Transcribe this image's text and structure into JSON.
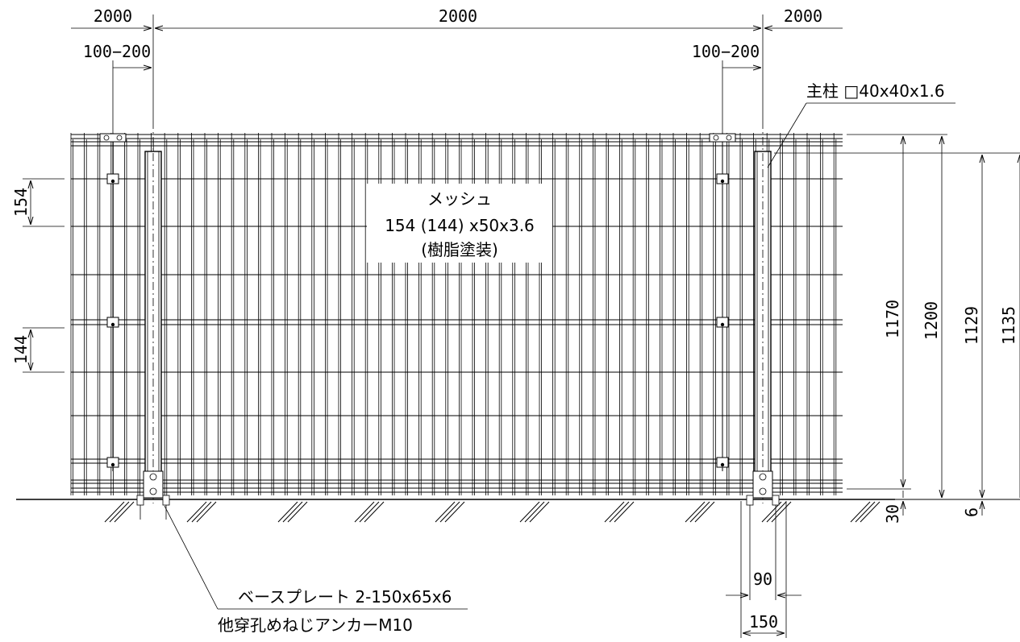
{
  "dimensions": {
    "top_left_span": "2000",
    "top_center_span": "2000",
    "top_right_span": "2000",
    "offset_left": "100−200",
    "offset_right": "100−200",
    "mesh_pitch_upper": "154",
    "mesh_pitch_lower": "144",
    "height_1170": "1170",
    "height_1200": "1200",
    "height_1129": "1129",
    "height_1135": "1135",
    "ground_gap_30": "30",
    "ground_gap_6": "6",
    "anchor_pitch": "90",
    "base_width": "150"
  },
  "callouts": {
    "post": "主柱 □40x40x1.6",
    "mesh_title": "メッシュ",
    "mesh_spec": "154 (144) x50x3.6",
    "mesh_finish": "(樹脂塗装)",
    "base_plate": "ベースプレート 2-150x65x6",
    "anchor": "他穿孔めねじアンカーM10"
  }
}
